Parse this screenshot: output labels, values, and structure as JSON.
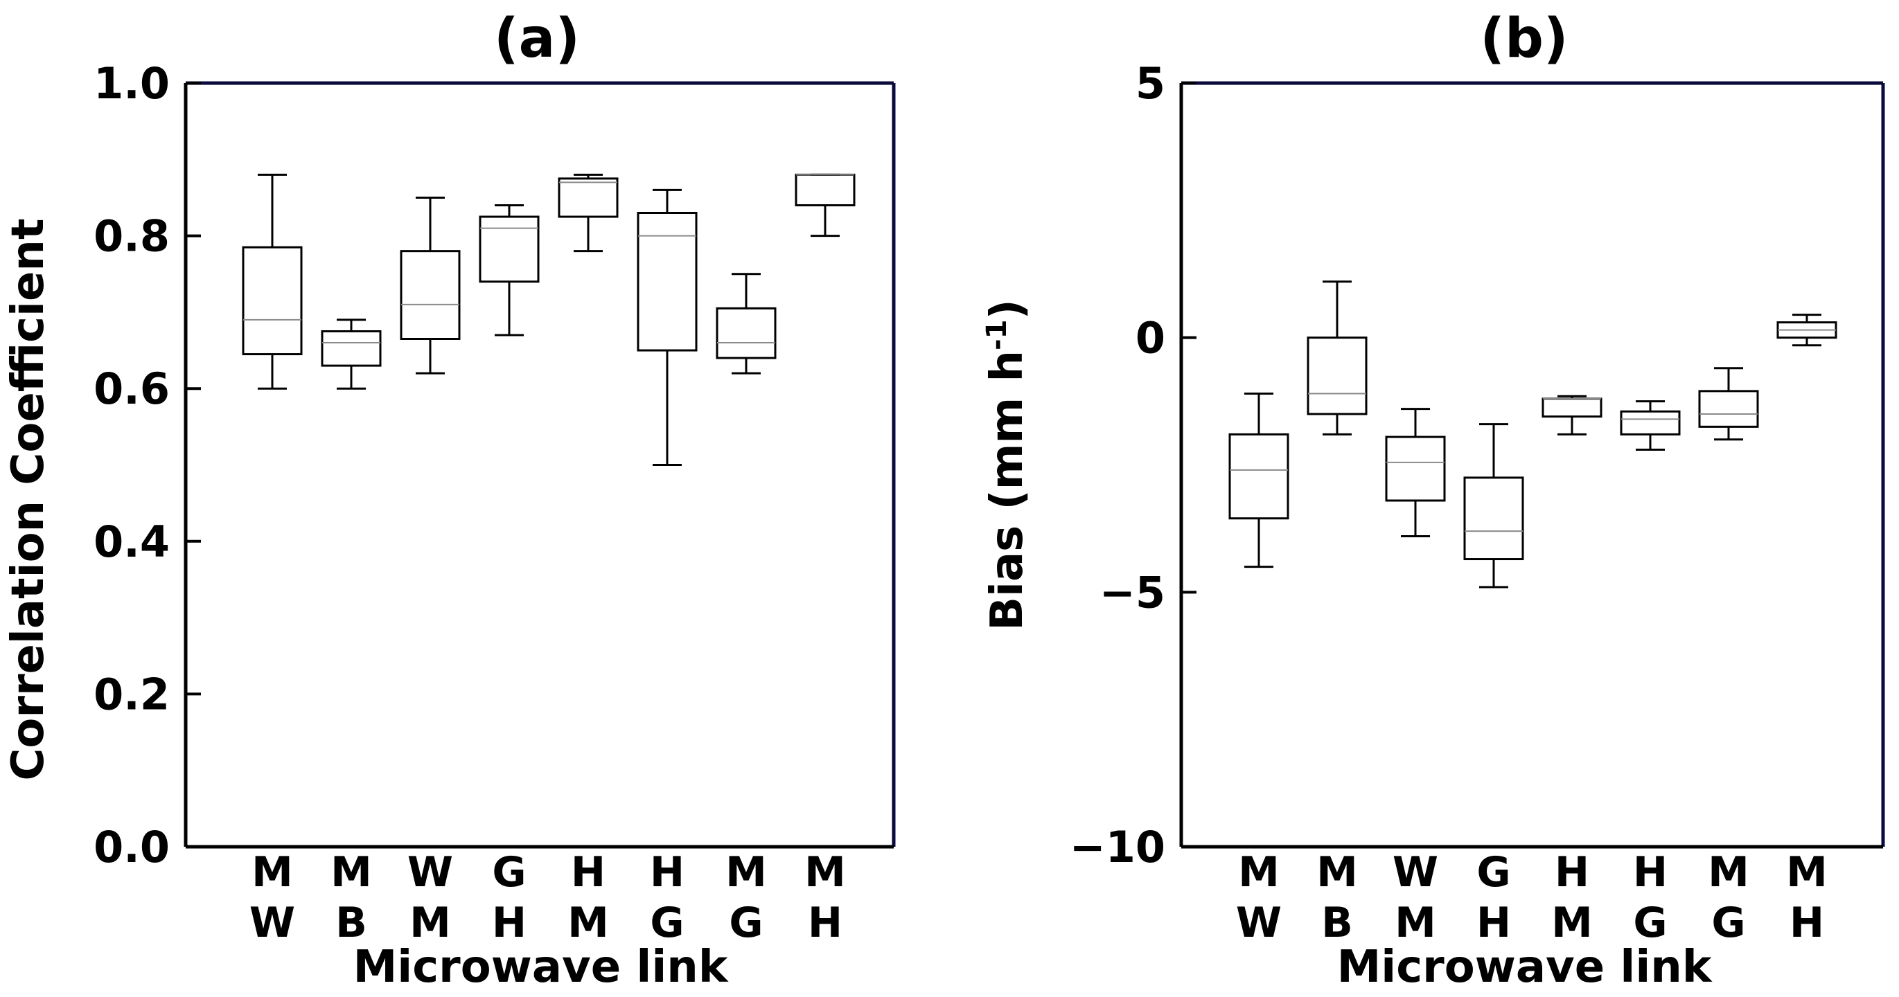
{
  "colors": {
    "frame": "#0a0a3c",
    "box": "#000000",
    "median": "#8a8a8a",
    "background": "#ffffff"
  },
  "chart_data": [
    {
      "type": "box",
      "title": "(a)",
      "xlabel": "Microwave link",
      "ylabel": "Correlation Coefficient",
      "ylim": [
        0.0,
        1.0
      ],
      "yticks": [
        "0.0",
        "0.2",
        "0.4",
        "0.6",
        "0.8",
        "1.0"
      ],
      "ytick_values": [
        0.0,
        0.2,
        0.4,
        0.6,
        0.8,
        1.0
      ],
      "categories": [
        {
          "top": "M",
          "bottom": "W"
        },
        {
          "top": "M",
          "bottom": "B"
        },
        {
          "top": "W",
          "bottom": "M"
        },
        {
          "top": "G",
          "bottom": "H"
        },
        {
          "top": "H",
          "bottom": "M"
        },
        {
          "top": "H",
          "bottom": "G"
        },
        {
          "top": "M",
          "bottom": "G"
        },
        {
          "top": "M",
          "bottom": "H"
        }
      ],
      "boxes": [
        {
          "min": 0.6,
          "q1": 0.645,
          "median": 0.69,
          "q3": 0.785,
          "max": 0.88
        },
        {
          "min": 0.6,
          "q1": 0.63,
          "median": 0.66,
          "q3": 0.675,
          "max": 0.69
        },
        {
          "min": 0.62,
          "q1": 0.665,
          "median": 0.71,
          "q3": 0.78,
          "max": 0.85
        },
        {
          "min": 0.67,
          "q1": 0.74,
          "median": 0.81,
          "q3": 0.825,
          "max": 0.84
        },
        {
          "min": 0.78,
          "q1": 0.825,
          "median": 0.87,
          "q3": 0.875,
          "max": 0.88
        },
        {
          "min": 0.5,
          "q1": 0.65,
          "median": 0.8,
          "q3": 0.83,
          "max": 0.86
        },
        {
          "min": 0.62,
          "q1": 0.64,
          "median": 0.66,
          "q3": 0.705,
          "max": 0.75
        },
        {
          "min": 0.8,
          "q1": 0.84,
          "median": 0.88,
          "q3": 0.88,
          "max": 0.88
        }
      ]
    },
    {
      "type": "box",
      "title": "(b)",
      "xlabel": "Microwave link",
      "ylabel": "Bias (mm h",
      "ylabel_superscript": "-1",
      "ylabel_close": ")",
      "ylim": [
        -10,
        5
      ],
      "yticks": [
        "5",
        "0",
        "−5",
        "−10"
      ],
      "ytick_values": [
        5,
        0,
        -5,
        -10
      ],
      "categories": [
        {
          "top": "M",
          "bottom": "W"
        },
        {
          "top": "M",
          "bottom": "B"
        },
        {
          "top": "W",
          "bottom": "M"
        },
        {
          "top": "G",
          "bottom": "H"
        },
        {
          "top": "H",
          "bottom": "M"
        },
        {
          "top": "H",
          "bottom": "G"
        },
        {
          "top": "M",
          "bottom": "G"
        },
        {
          "top": "M",
          "bottom": "H"
        }
      ],
      "boxes": [
        {
          "min": -4.5,
          "q1": -3.55,
          "median": -2.6,
          "q3": -1.9,
          "max": -1.1
        },
        {
          "min": -1.9,
          "q1": -1.5,
          "median": -1.1,
          "q3": 0.0,
          "max": 1.1
        },
        {
          "min": -3.9,
          "q1": -3.2,
          "median": -2.45,
          "q3": -1.95,
          "max": -1.4
        },
        {
          "min": -4.9,
          "q1": -4.35,
          "median": -3.8,
          "q3": -2.75,
          "max": -1.7
        },
        {
          "min": -1.9,
          "q1": -1.55,
          "median": -1.2,
          "q3": -1.2,
          "max": -1.15
        },
        {
          "min": -2.2,
          "q1": -1.9,
          "median": -1.6,
          "q3": -1.45,
          "max": -1.25
        },
        {
          "min": -2.0,
          "q1": -1.75,
          "median": -1.5,
          "q3": -1.05,
          "max": -0.6
        },
        {
          "min": -0.15,
          "q1": 0.0,
          "median": 0.15,
          "q3": 0.3,
          "max": 0.45
        }
      ]
    }
  ]
}
